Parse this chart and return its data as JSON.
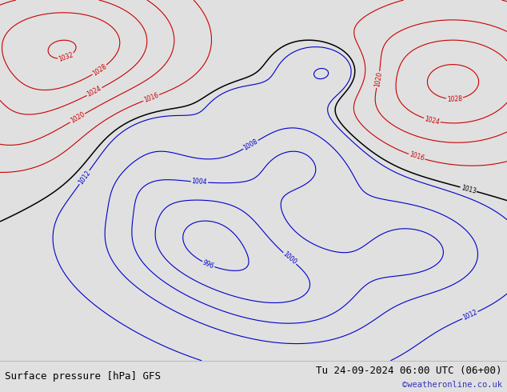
{
  "title_left": "Surface pressure [hPa] GFS",
  "title_right": "Tu 24-09-2024 06:00 UTC (06+00)",
  "watermark": "©weatheronline.co.uk",
  "bg_color": "#e0e0e0",
  "land_color_main": "#b8dfa0",
  "land_color_other": "#c8c8c8",
  "sea_color": "#d4d4d4",
  "fig_width": 6.34,
  "fig_height": 4.9,
  "dpi": 100,
  "bottom_bar_color": "#c8c8c8",
  "title_fontsize": 9,
  "watermark_color": "#3333bb",
  "contour_black_color": "#000000",
  "contour_blue_color": "#0000cc",
  "contour_red_color": "#cc0000",
  "lon_min": 88,
  "lon_max": 172,
  "lat_min": -18,
  "lat_max": 57,
  "pressure_base": 1013.0,
  "contour_interval": 4,
  "contour_min": 988,
  "contour_max": 1032
}
